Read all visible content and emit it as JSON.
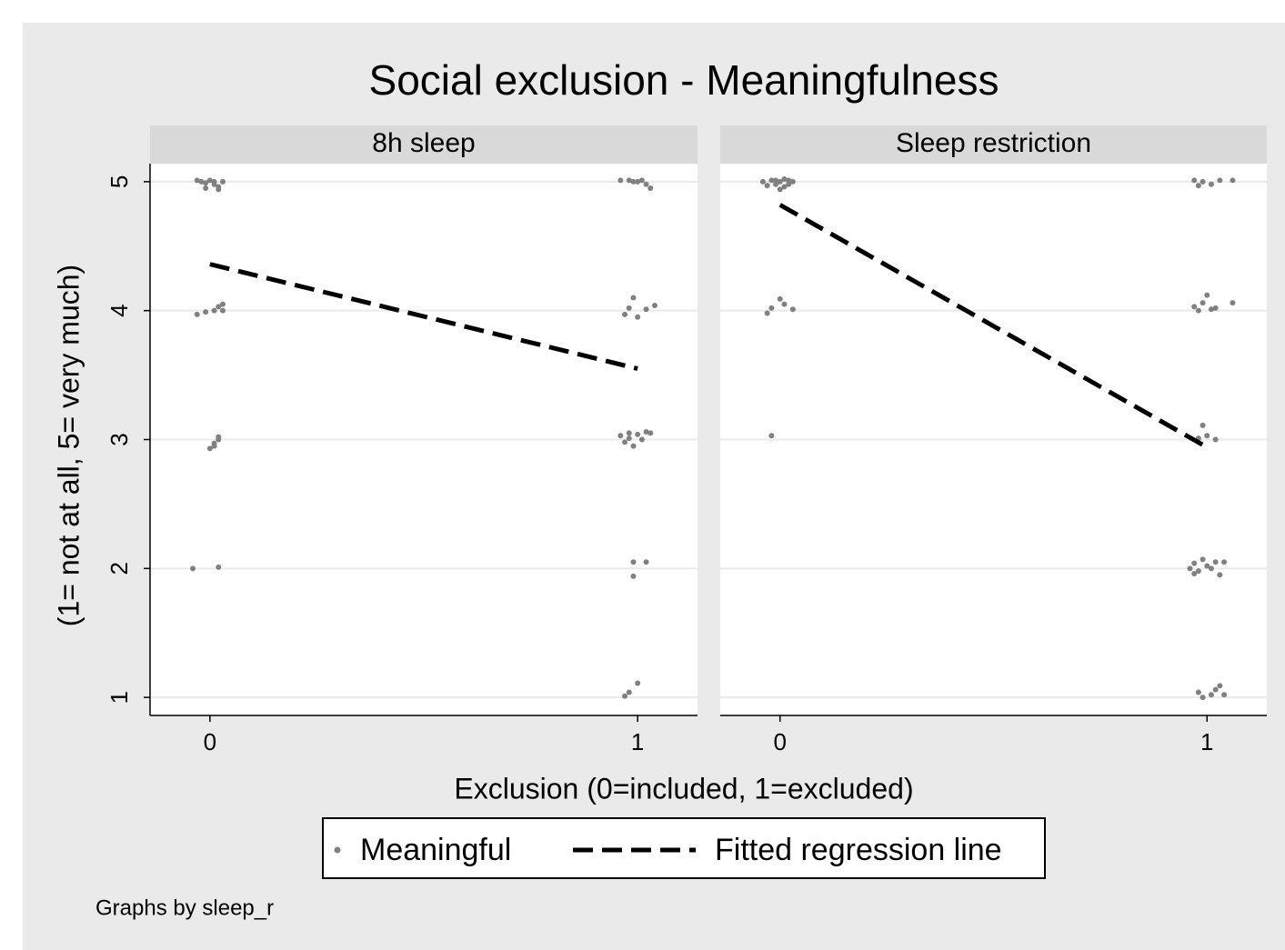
{
  "title": "Social exclusion - Meaningfulness",
  "xlabel": "Exclusion (0=included, 1=excluded)",
  "ylabel": "(1= not at all, 5= very much)",
  "note": "Graphs by sleep_r",
  "chart_data": [
    {
      "type": "scatter",
      "title": "8h sleep",
      "xlim": [
        -0.14,
        1.14
      ],
      "ylim": [
        0.86,
        5.14
      ],
      "xticks": [
        0,
        1
      ],
      "yticks": [
        1,
        2,
        3,
        4,
        5
      ],
      "grid": true,
      "series": [
        {
          "name": "Meaningful",
          "color": "#808080",
          "x": [
            -0.03,
            -0.02,
            -0.01,
            0,
            0.01,
            0.02,
            0.03,
            -0.01,
            0.01,
            0.02,
            -0.03,
            -0.01,
            0.01,
            0.02,
            0.03,
            0.03,
            0,
            0.01,
            0.02,
            0.02,
            0.01,
            -0.04,
            0.02,
            0.96,
            0.98,
            1.0,
            1.01,
            1.02,
            1.03,
            0.99,
            0.97,
            0.98,
            0.99,
            1.0,
            1.02,
            1.04,
            0.96,
            0.97,
            0.98,
            0.99,
            1.0,
            1.01,
            1.02,
            1.03,
            0.98,
            0.99,
            0.99,
            1.02,
            0.97,
            0.98,
            1.0
          ],
          "y": [
            5.01,
            5.0,
            4.99,
            5.01,
            5.0,
            4.96,
            5.0,
            4.95,
            4.98,
            4.94,
            3.97,
            3.99,
            4.0,
            4.03,
            4.05,
            4.0,
            2.93,
            2.95,
            3.0,
            3.02,
            2.97,
            2.0,
            2.01,
            5.01,
            5.01,
            5.0,
            5.01,
            4.98,
            4.95,
            5.0,
            3.97,
            4.02,
            4.1,
            3.95,
            4.01,
            4.04,
            3.03,
            2.98,
            3.01,
            2.95,
            3.04,
            3.0,
            3.06,
            3.05,
            3.05,
            2.05,
            1.94,
            2.05,
            1.01,
            1.04,
            1.11
          ]
        },
        {
          "name": "Fitted regression line",
          "type": "line",
          "color": "#000000",
          "dash": "dashed",
          "x": [
            0,
            1
          ],
          "y": [
            4.36,
            3.55
          ]
        }
      ]
    },
    {
      "type": "scatter",
      "title": "Sleep restriction",
      "xlim": [
        -0.14,
        1.14
      ],
      "ylim": [
        0.86,
        5.14
      ],
      "xticks": [
        0,
        1
      ],
      "yticks": [
        1,
        2,
        3,
        4,
        5
      ],
      "grid": true,
      "series": [
        {
          "color": "#808080",
          "x": [
            -0.04,
            -0.03,
            -0.02,
            -0.01,
            0,
            0,
            0.01,
            0.02,
            0.02,
            0.03,
            0.01,
            -0.01,
            -0.03,
            -0.02,
            0,
            0.01,
            0.03,
            -0.02,
            0.97,
            0.98,
            0.99,
            1.01,
            1.03,
            1.06,
            0.97,
            0.98,
            0.99,
            1.0,
            1.01,
            1.02,
            1.06,
            0.98,
            0.99,
            1.0,
            1.02,
            0.96,
            0.97,
            0.98,
            0.99,
            1.0,
            1.01,
            1.02,
            1.03,
            1.04,
            0.97,
            0.98,
            0.99,
            1.01,
            1.02,
            1.03,
            1.04
          ],
          "y": [
            5.0,
            4.97,
            5.01,
            4.98,
            5.0,
            4.94,
            4.96,
            5.01,
            4.98,
            5.0,
            5.02,
            5.01,
            3.98,
            4.02,
            4.09,
            4.05,
            4.01,
            3.03,
            5.01,
            4.97,
            5.0,
            4.98,
            5.01,
            5.01,
            4.03,
            4.0,
            4.06,
            4.12,
            4.01,
            4.02,
            4.06,
            3.01,
            3.11,
            3.03,
            3.0,
            2.0,
            2.04,
            1.98,
            2.07,
            2.02,
            2.0,
            2.05,
            1.95,
            2.05,
            1.96,
            1.04,
            1.0,
            1.02,
            1.06,
            1.09,
            1.02
          ]
        },
        {
          "type": "line",
          "color": "#000000",
          "dash": "dashed",
          "x": [
            0,
            1
          ],
          "y": [
            4.82,
            2.94
          ]
        }
      ]
    }
  ]
}
